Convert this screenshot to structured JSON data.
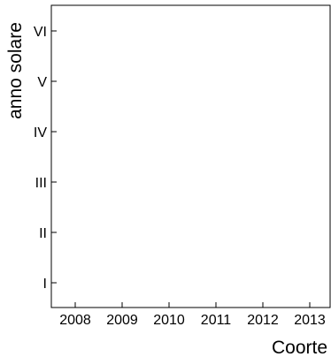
{
  "chart_data": {
    "type": "scatter",
    "title": "",
    "xlabel": "Coorte",
    "ylabel": "anno solare",
    "x_categories": [
      "2008",
      "2009",
      "2010",
      "2011",
      "2012",
      "2013"
    ],
    "y_categories": [
      "I",
      "II",
      "III",
      "IV",
      "V",
      "VI"
    ],
    "points": [],
    "grid": false,
    "legend": "none"
  }
}
